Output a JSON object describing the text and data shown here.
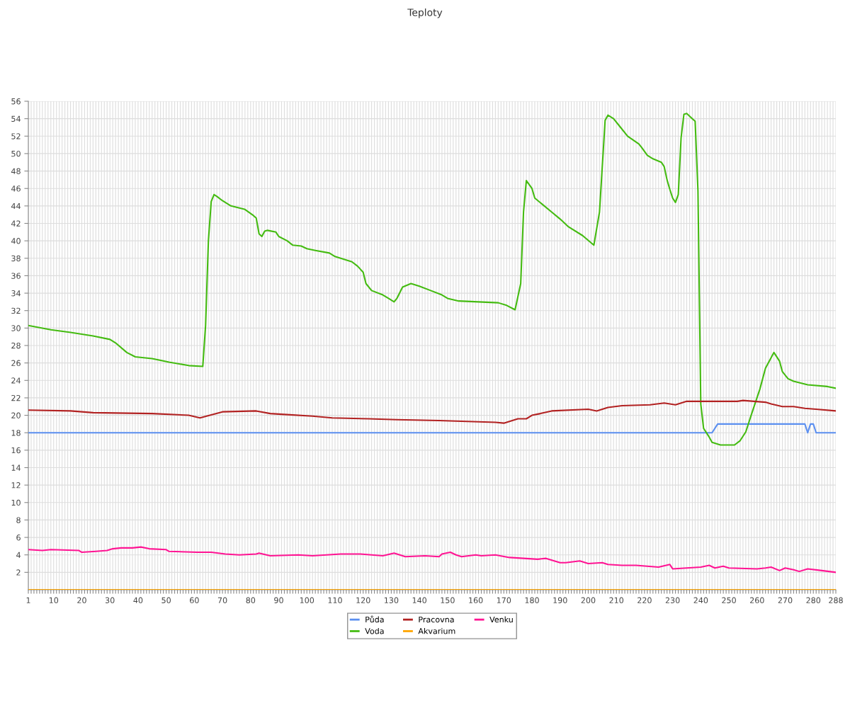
{
  "chart_data": {
    "type": "line",
    "title": "Teploty",
    "xlim": [
      1,
      288
    ],
    "xticks": [
      1,
      {
        "value": 2,
        "label": null
      },
      {
        "value": 3,
        "label": null
      },
      {
        "value": 4,
        "label": null
      },
      {
        "value": 5,
        "label": null
      },
      {
        "value": 6,
        "label": null
      },
      {
        "value": 7,
        "label": null
      },
      {
        "value": 8,
        "label": null
      },
      {
        "value": 9,
        "label": null
      },
      10,
      {
        "value": 11,
        "label": null
      },
      {
        "value": 12,
        "label": null
      },
      {
        "value": 13,
        "label": null
      },
      {
        "value": 14,
        "label": null
      },
      {
        "value": 15,
        "label": null
      },
      {
        "value": 16,
        "label": null
      },
      {
        "value": 17,
        "label": null
      },
      {
        "value": 18,
        "label": null
      },
      {
        "value": 19,
        "label": null
      },
      20,
      {
        "value": 21,
        "label": null
      },
      {
        "value": 22,
        "label": null
      },
      {
        "value": 23,
        "label": null
      },
      {
        "value": 24,
        "label": null
      },
      {
        "value": 25,
        "label": null
      },
      {
        "value": 26,
        "label": null
      },
      {
        "value": 27,
        "label": null
      },
      {
        "value": 28,
        "label": null
      },
      {
        "value": 29,
        "label": null
      },
      30,
      {
        "value": 31,
        "label": null
      },
      {
        "value": 32,
        "label": null
      },
      {
        "value": 33,
        "label": null
      },
      {
        "value": 34,
        "label": null
      },
      {
        "value": 35,
        "label": null
      },
      {
        "value": 36,
        "label": null
      },
      {
        "value": 37,
        "label": null
      },
      {
        "value": 38,
        "label": null
      },
      {
        "value": 39,
        "label": null
      },
      40,
      {
        "value": 41,
        "label": null
      },
      {
        "value": 42,
        "label": null
      },
      {
        "value": 43,
        "label": null
      },
      {
        "value": 44,
        "label": null
      },
      {
        "value": 45,
        "label": null
      },
      {
        "value": 46,
        "label": null
      },
      {
        "value": 47,
        "label": null
      },
      {
        "value": 48,
        "label": null
      },
      {
        "value": 49,
        "label": null
      },
      50,
      {
        "value": 51,
        "label": null
      },
      {
        "value": 52,
        "label": null
      },
      {
        "value": 53,
        "label": null
      },
      {
        "value": 54,
        "label": null
      },
      {
        "value": 55,
        "label": null
      },
      {
        "value": 56,
        "label": null
      },
      {
        "value": 57,
        "label": null
      },
      {
        "value": 58,
        "label": null
      },
      {
        "value": 59,
        "label": null
      },
      60,
      {
        "value": 61,
        "label": null
      },
      {
        "value": 62,
        "label": null
      },
      {
        "value": 63,
        "label": null
      },
      {
        "value": 64,
        "label": null
      },
      {
        "value": 65,
        "label": null
      },
      {
        "value": 66,
        "label": null
      },
      {
        "value": 67,
        "label": null
      },
      {
        "value": 68,
        "label": null
      },
      {
        "value": 69,
        "label": null
      },
      70,
      {
        "value": 71,
        "label": null
      },
      {
        "value": 72,
        "label": null
      },
      {
        "value": 73,
        "label": null
      },
      {
        "value": 74,
        "label": null
      },
      {
        "value": 75,
        "label": null
      },
      {
        "value": 76,
        "label": null
      },
      {
        "value": 77,
        "label": null
      },
      {
        "value": 78,
        "label": null
      },
      {
        "value": 79,
        "label": null
      },
      80,
      {
        "value": 81,
        "label": null
      },
      {
        "value": 82,
        "label": null
      },
      {
        "value": 83,
        "label": null
      },
      {
        "value": 84,
        "label": null
      },
      {
        "value": 85,
        "label": null
      },
      {
        "value": 86,
        "label": null
      },
      {
        "value": 87,
        "label": null
      },
      {
        "value": 88,
        "label": null
      },
      {
        "value": 89,
        "label": null
      },
      90,
      {
        "value": 91,
        "label": null
      },
      {
        "value": 92,
        "label": null
      },
      {
        "value": 93,
        "label": null
      },
      {
        "value": 94,
        "label": null
      },
      {
        "value": 95,
        "label": null
      },
      {
        "value": 96,
        "label": null
      },
      {
        "value": 97,
        "label": null
      },
      {
        "value": 98,
        "label": null
      },
      {
        "value": 99,
        "label": null
      },
      100,
      {
        "value": 101,
        "label": null
      },
      {
        "value": 102,
        "label": null
      },
      {
        "value": 103,
        "label": null
      },
      {
        "value": 104,
        "label": null
      },
      {
        "value": 105,
        "label": null
      },
      {
        "value": 106,
        "label": null
      },
      {
        "value": 107,
        "label": null
      },
      {
        "value": 108,
        "label": null
      },
      {
        "value": 109,
        "label": null
      },
      110,
      {
        "value": 111,
        "label": null
      },
      {
        "value": 112,
        "label": null
      },
      {
        "value": 113,
        "label": null
      },
      {
        "value": 114,
        "label": null
      },
      {
        "value": 115,
        "label": null
      },
      {
        "value": 116,
        "label": null
      },
      {
        "value": 117,
        "label": null
      },
      {
        "value": 118,
        "label": null
      },
      {
        "value": 119,
        "label": null
      },
      120,
      {
        "value": 121,
        "label": null
      },
      {
        "value": 122,
        "label": null
      },
      {
        "value": 123,
        "label": null
      },
      {
        "value": 124,
        "label": null
      },
      {
        "value": 125,
        "label": null
      },
      {
        "value": 126,
        "label": null
      },
      {
        "value": 127,
        "label": null
      },
      {
        "value": 128,
        "label": null
      },
      {
        "value": 129,
        "label": null
      },
      130,
      {
        "value": 131,
        "label": null
      },
      {
        "value": 132,
        "label": null
      },
      {
        "value": 133,
        "label": null
      },
      {
        "value": 134,
        "label": null
      },
      {
        "value": 135,
        "label": null
      },
      {
        "value": 136,
        "label": null
      },
      {
        "value": 137,
        "label": null
      },
      {
        "value": 138,
        "label": null
      },
      {
        "value": 139,
        "label": null
      },
      140,
      {
        "value": 141,
        "label": null
      },
      {
        "value": 142,
        "label": null
      },
      {
        "value": 143,
        "label": null
      },
      {
        "value": 144,
        "label": null
      },
      {
        "value": 145,
        "label": null
      },
      {
        "value": 146,
        "label": null
      },
      {
        "value": 147,
        "label": null
      },
      {
        "value": 148,
        "label": null
      },
      {
        "value": 149,
        "label": null
      },
      150,
      {
        "value": 151,
        "label": null
      },
      {
        "value": 152,
        "label": null
      },
      {
        "value": 153,
        "label": null
      },
      {
        "value": 154,
        "label": null
      },
      {
        "value": 155,
        "label": null
      },
      {
        "value": 156,
        "label": null
      },
      {
        "value": 157,
        "label": null
      },
      {
        "value": 158,
        "label": null
      },
      {
        "value": 159,
        "label": null
      },
      160,
      {
        "value": 161,
        "label": null
      },
      {
        "value": 162,
        "label": null
      },
      {
        "value": 163,
        "label": null
      },
      {
        "value": 164,
        "label": null
      },
      {
        "value": 165,
        "label": null
      },
      {
        "value": 166,
        "label": null
      },
      {
        "value": 167,
        "label": null
      },
      {
        "value": 168,
        "label": null
      },
      {
        "value": 169,
        "label": null
      },
      170,
      {
        "value": 171,
        "label": null
      },
      {
        "value": 172,
        "label": null
      },
      {
        "value": 173,
        "label": null
      },
      {
        "value": 174,
        "label": null
      },
      {
        "value": 175,
        "label": null
      },
      {
        "value": 176,
        "label": null
      },
      {
        "value": 177,
        "label": null
      },
      {
        "value": 178,
        "label": null
      },
      {
        "value": 179,
        "label": null
      },
      180,
      {
        "value": 181,
        "label": null
      },
      {
        "value": 182,
        "label": null
      },
      {
        "value": 183,
        "label": null
      },
      {
        "value": 184,
        "label": null
      },
      {
        "value": 185,
        "label": null
      },
      {
        "value": 186,
        "label": null
      },
      {
        "value": 187,
        "label": null
      },
      {
        "value": 188,
        "label": null
      },
      {
        "value": 189,
        "label": null
      },
      190,
      {
        "value": 191,
        "label": null
      },
      {
        "value": 192,
        "label": null
      },
      {
        "value": 193,
        "label": null
      },
      {
        "value": 194,
        "label": null
      },
      {
        "value": 195,
        "label": null
      },
      {
        "value": 196,
        "label": null
      },
      {
        "value": 197,
        "label": null
      },
      {
        "value": 198,
        "label": null
      },
      {
        "value": 199,
        "label": null
      },
      200,
      {
        "value": 201,
        "label": null
      },
      {
        "value": 202,
        "label": null
      },
      {
        "value": 203,
        "label": null
      },
      {
        "value": 204,
        "label": null
      },
      {
        "value": 205,
        "label": null
      },
      {
        "value": 206,
        "label": null
      },
      {
        "value": 207,
        "label": null
      },
      {
        "value": 208,
        "label": null
      },
      {
        "value": 209,
        "label": null
      },
      210,
      {
        "value": 211,
        "label": null
      },
      {
        "value": 212,
        "label": null
      },
      {
        "value": 213,
        "label": null
      },
      {
        "value": 214,
        "label": null
      },
      {
        "value": 215,
        "label": null
      },
      {
        "value": 216,
        "label": null
      },
      {
        "value": 217,
        "label": null
      },
      {
        "value": 218,
        "label": null
      },
      {
        "value": 219,
        "label": null
      },
      220,
      {
        "value": 221,
        "label": null
      },
      {
        "value": 222,
        "label": null
      },
      {
        "value": 223,
        "label": null
      },
      {
        "value": 224,
        "label": null
      },
      {
        "value": 225,
        "label": null
      },
      {
        "value": 226,
        "label": null
      },
      {
        "value": 227,
        "label": null
      },
      {
        "value": 228,
        "label": null
      },
      {
        "value": 229,
        "label": null
      },
      230,
      {
        "value": 231,
        "label": null
      },
      {
        "value": 232,
        "label": null
      },
      {
        "value": 233,
        "label": null
      },
      {
        "value": 234,
        "label": null
      },
      {
        "value": 235,
        "label": null
      },
      {
        "value": 236,
        "label": null
      },
      {
        "value": 237,
        "label": null
      },
      {
        "value": 238,
        "label": null
      },
      {
        "value": 239,
        "label": null
      },
      240,
      {
        "value": 241,
        "label": null
      },
      {
        "value": 242,
        "label": null
      },
      {
        "value": 243,
        "label": null
      },
      {
        "value": 244,
        "label": null
      },
      {
        "value": 245,
        "label": null
      },
      {
        "value": 246,
        "label": null
      },
      {
        "value": 247,
        "label": null
      },
      {
        "value": 248,
        "label": null
      },
      {
        "value": 249,
        "label": null
      },
      250,
      {
        "value": 251,
        "label": null
      },
      {
        "value": 252,
        "label": null
      },
      {
        "value": 253,
        "label": null
      },
      {
        "value": 254,
        "label": null
      },
      {
        "value": 255,
        "label": null
      },
      {
        "value": 256,
        "label": null
      },
      {
        "value": 257,
        "label": null
      },
      {
        "value": 258,
        "label": null
      },
      {
        "value": 259,
        "label": null
      },
      260,
      {
        "value": 261,
        "label": null
      },
      {
        "value": 262,
        "label": null
      },
      {
        "value": 263,
        "label": null
      },
      {
        "value": 264,
        "label": null
      },
      {
        "value": 265,
        "label": null
      },
      {
        "value": 266,
        "label": null
      },
      {
        "value": 267,
        "label": null
      },
      {
        "value": 268,
        "label": null
      },
      {
        "value": 269,
        "label": null
      },
      270,
      {
        "value": 271,
        "label": null
      },
      {
        "value": 272,
        "label": null
      },
      {
        "value": 273,
        "label": null
      },
      {
        "value": 274,
        "label": null
      },
      {
        "value": 275,
        "label": null
      },
      {
        "value": 276,
        "label": null
      },
      {
        "value": 277,
        "label": null
      },
      {
        "value": 278,
        "label": null
      },
      {
        "value": 279,
        "label": null
      },
      280,
      {
        "value": 281,
        "label": null
      },
      {
        "value": 282,
        "label": null
      },
      {
        "value": 283,
        "label": null
      },
      {
        "value": 284,
        "label": null
      },
      {
        "value": 285,
        "label": null
      },
      {
        "value": 286,
        "label": null
      },
      {
        "value": 287,
        "label": null
      },
      288
    ],
    "ylim": [
      0,
      56
    ],
    "yticks": [
      2,
      4,
      6,
      8,
      10,
      12,
      14,
      16,
      18,
      20,
      22,
      24,
      26,
      28,
      30,
      32,
      34,
      36,
      38,
      40,
      42,
      44,
      46,
      48,
      50,
      52,
      54,
      56
    ],
    "grid": true,
    "legend": "bottom",
    "marker": "none",
    "line_style": "solid",
    "series": [
      {
        "name": "Půda",
        "color": "#5b8ff0",
        "x": [
          1,
          244,
          246,
          277,
          278,
          279,
          280,
          281,
          288
        ],
        "values": [
          18,
          18,
          19,
          19,
          18,
          19,
          19,
          18,
          18
        ]
      },
      {
        "name": "Voda",
        "color": "#44bb11",
        "x": [
          1,
          9,
          16,
          24,
          30,
          32,
          36,
          39,
          45,
          51,
          58,
          63,
          64,
          65,
          66,
          67,
          68,
          70,
          73,
          78,
          81,
          82,
          83,
          84,
          85,
          86,
          89,
          90,
          93,
          95,
          98,
          100,
          103,
          108,
          110,
          113,
          116,
          118,
          120,
          121,
          123,
          127,
          129,
          131,
          132,
          134,
          137,
          140,
          144,
          148,
          150,
          154,
          161,
          168,
          171,
          174,
          176,
          177,
          178,
          180,
          181,
          184,
          187,
          190,
          193,
          198,
          202,
          204,
          206,
          207,
          209,
          211,
          214,
          218,
          219,
          221,
          223,
          226,
          227,
          228,
          229,
          230,
          231,
          232,
          233,
          234,
          235,
          237,
          238,
          239,
          240,
          241,
          243,
          244,
          247,
          252,
          254,
          256,
          258,
          261,
          263,
          266,
          268,
          269,
          271,
          273,
          278,
          285,
          288
        ],
        "values": [
          30.3,
          29.8,
          29.5,
          29.1,
          28.7,
          28.3,
          27.2,
          26.7,
          26.5,
          26.1,
          25.7,
          25.6,
          30.3,
          40,
          44.5,
          45.3,
          45.1,
          44.6,
          44.0,
          43.6,
          42.9,
          42.6,
          40.8,
          40.5,
          41.1,
          41.2,
          41.0,
          40.5,
          40.0,
          39.5,
          39.4,
          39.1,
          38.9,
          38.6,
          38.2,
          37.9,
          37.6,
          37.1,
          36.4,
          35.1,
          34.3,
          33.8,
          33.4,
          33.0,
          33.4,
          34.7,
          35.1,
          34.8,
          34.3,
          33.8,
          33.4,
          33.1,
          33.0,
          32.9,
          32.6,
          32.1,
          35.1,
          43.3,
          46.9,
          46.0,
          44.9,
          44.1,
          43.3,
          42.5,
          41.6,
          40.6,
          39.5,
          43.3,
          53.8,
          54.4,
          54.0,
          53.2,
          52.0,
          51.1,
          50.7,
          49.8,
          49.4,
          49.0,
          48.5,
          47.0,
          45.9,
          44.9,
          44.4,
          45.3,
          51.8,
          54.5,
          54.6,
          54.0,
          53.7,
          45.7,
          21.3,
          18.5,
          17.5,
          16.9,
          16.6,
          16.6,
          17.1,
          18.1,
          20.1,
          23.0,
          25.4,
          27.2,
          26.2,
          25.0,
          24.2,
          23.9,
          23.5,
          23.3,
          23.1
        ]
      },
      {
        "name": "Pracovna",
        "color": "#b22222",
        "x": [
          1,
          16,
          24,
          45,
          58,
          62,
          70,
          82,
          87,
          92,
          102,
          109,
          122,
          132,
          147,
          157,
          167,
          170,
          175,
          178,
          180,
          183,
          187,
          200,
          203,
          207,
          212,
          222,
          227,
          231,
          235,
          239,
          253,
          255,
          263,
          265,
          269,
          273,
          277,
          281,
          288
        ],
        "values": [
          20.6,
          20.5,
          20.3,
          20.2,
          20.0,
          19.7,
          20.4,
          20.5,
          20.2,
          20.1,
          19.9,
          19.7,
          19.6,
          19.5,
          19.4,
          19.3,
          19.2,
          19.1,
          19.6,
          19.6,
          20.0,
          20.2,
          20.5,
          20.7,
          20.5,
          20.9,
          21.1,
          21.2,
          21.4,
          21.2,
          21.6,
          21.6,
          21.6,
          21.7,
          21.5,
          21.3,
          21.0,
          21.0,
          20.8,
          20.7,
          20.5
        ]
      },
      {
        "name": "Akvarium",
        "color": "#ffa500",
        "x": [
          1,
          288
        ],
        "values": [
          0,
          0
        ]
      },
      {
        "name": "Venku",
        "color": "#ff1493",
        "x": [
          1,
          6,
          9,
          19,
          20,
          25,
          29,
          31,
          34,
          38,
          41,
          44,
          50,
          51,
          61,
          66,
          71,
          76,
          82,
          83,
          87,
          97,
          102,
          107,
          112,
          119,
          127,
          131,
          135,
          142,
          147,
          148,
          151,
          153,
          155,
          160,
          162,
          167,
          172,
          182,
          185,
          190,
          192,
          197,
          200,
          205,
          207,
          212,
          217,
          225,
          229,
          230,
          240,
          243,
          245,
          248,
          250,
          260,
          263,
          265,
          268,
          270,
          273,
          275,
          278,
          283,
          288
        ],
        "values": [
          4.6,
          4.5,
          4.6,
          4.5,
          4.3,
          4.4,
          4.5,
          4.7,
          4.8,
          4.8,
          4.9,
          4.7,
          4.6,
          4.4,
          4.3,
          4.3,
          4.1,
          4.0,
          4.1,
          4.2,
          3.9,
          4.0,
          3.9,
          4.0,
          4.1,
          4.1,
          3.9,
          4.2,
          3.8,
          3.9,
          3.8,
          4.1,
          4.3,
          4.0,
          3.8,
          4.0,
          3.9,
          4.0,
          3.7,
          3.5,
          3.6,
          3.1,
          3.1,
          3.3,
          3.0,
          3.1,
          2.9,
          2.8,
          2.8,
          2.6,
          2.9,
          2.4,
          2.6,
          2.8,
          2.5,
          2.7,
          2.5,
          2.4,
          2.5,
          2.6,
          2.2,
          2.5,
          2.3,
          2.1,
          2.4,
          2.2,
          2.0
        ]
      }
    ]
  }
}
